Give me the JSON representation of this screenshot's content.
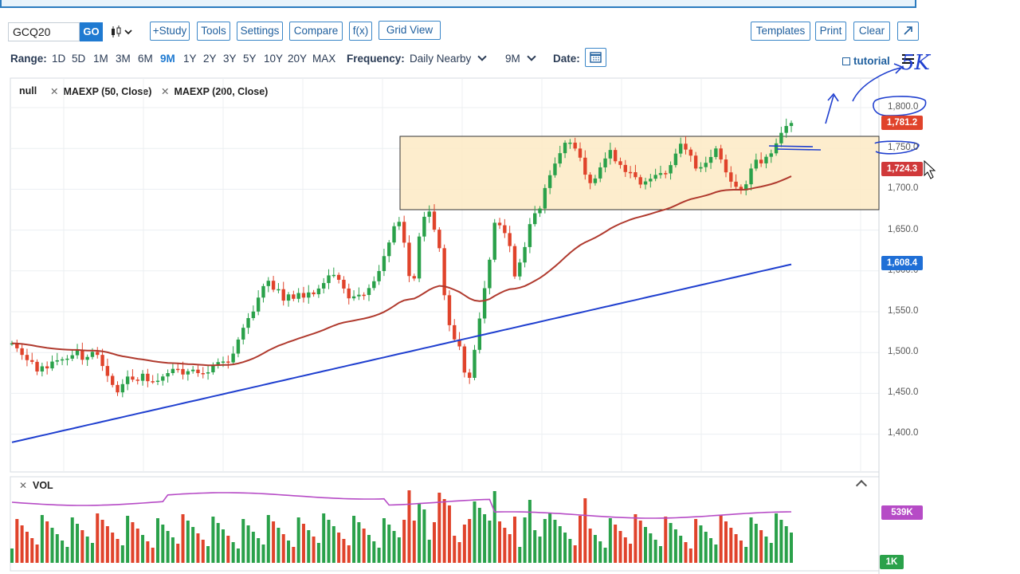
{
  "toolbar": {
    "symbol": "GCQ20",
    "go_label": "GO",
    "buttons": [
      "+Study",
      "Tools",
      "Settings",
      "Compare",
      "f(x)",
      "Grid View"
    ],
    "right_buttons": [
      "Templates",
      "Print",
      "Clear"
    ]
  },
  "range_bar": {
    "range_label": "Range:",
    "ranges": [
      "1D",
      "5D",
      "1M",
      "3M",
      "6M",
      "9M",
      "1Y",
      "2Y",
      "3Y",
      "5Y",
      "10Y",
      "20Y",
      "MAX"
    ],
    "active_range": "9M",
    "frequency_label": "Frequency:",
    "frequency_value": "Daily Nearby",
    "period_value": "9M",
    "date_label": "Date:",
    "tutorial_label": "tutorial"
  },
  "legend": {
    "items": [
      "null",
      "MAEXP (50, Close)",
      "MAEXP (200, Close)"
    ]
  },
  "price_axis": {
    "labels": [
      "1,800.0",
      "1,750.0",
      "1,700.0",
      "1,650.0",
      "1,600.0",
      "1,550.0",
      "1,500.0",
      "1,450.0",
      "1,400.0"
    ],
    "tags": [
      {
        "text": "1,781.2",
        "value": 1781.2,
        "color": "#e0432b"
      },
      {
        "text": "1,724.3",
        "value": 1724.3,
        "color": "#d0393a"
      },
      {
        "text": "1,608.4",
        "value": 1608.4,
        "color": "#1f6fd6"
      }
    ]
  },
  "volume_panel": {
    "title": "VOL",
    "close_glyph": "✕",
    "tags": [
      {
        "text": "539K",
        "color": "#b64bc6"
      },
      {
        "text": "1K",
        "color": "#2aa14a"
      }
    ]
  },
  "annotations": {
    "handwritten_text": "5K"
  },
  "colors": {
    "up": "#2aa14a",
    "down": "#e0432b",
    "ma50": "#b03a2e",
    "ma200": "#1f3fcf",
    "vol_avg": "#b64bc6",
    "range_box_fill": "#fdebc8",
    "accent": "#1f7ad1"
  },
  "chart_data": {
    "type": "candlestick",
    "ylim": [
      1375,
      1825
    ],
    "candles": [
      1511.3,
      1505.2,
      1497.1,
      1490.7,
      1488.6,
      1476.8,
      1483.1,
      1480.6,
      1488.9,
      1490.5,
      1491.7,
      1492.5,
      1496.7,
      1503.1,
      1491.1,
      1494.6,
      1500.8,
      1497.1,
      1483.5,
      1471.4,
      1460.3,
      1451.2,
      1461.3,
      1470.6,
      1466.8,
      1465.4,
      1474.0,
      1464.9,
      1464.6,
      1465.5,
      1470.7,
      1474.8,
      1480.0,
      1479.8,
      1473.1,
      1477.1,
      1479.0,
      1474.8,
      1474.3,
      1475.8,
      1484.9,
      1488.3,
      1489.0,
      1487.9,
      1498.7,
      1515.9,
      1530.3,
      1542.2,
      1550.2,
      1567.3,
      1581.4,
      1587.9,
      1577.0,
      1577.6,
      1563.6,
      1571.2,
      1565.8,
      1572.9,
      1567.3,
      1573.6,
      1571.4,
      1578.4,
      1585.1,
      1594.5,
      1595.1,
      1589.1,
      1578.4,
      1566.4,
      1568.8,
      1570.8,
      1570.5,
      1579.0,
      1587.3,
      1599.8,
      1618.1,
      1634.8,
      1654.7,
      1660.1,
      1634.6,
      1593.7,
      1590.7,
      1642.1,
      1666.3,
      1672.7,
      1650.5,
      1627.8,
      1570.2,
      1533.5,
      1516.1,
      1507.5,
      1475.5,
      1469.0,
      1503.3,
      1541.7,
      1578.8,
      1613.7,
      1659.0,
      1655.9,
      1646.3,
      1630.4,
      1593.2,
      1610.3,
      1629.2,
      1657.3,
      1670.6,
      1676.4,
      1701.5,
      1717.2,
      1731.5,
      1744.2,
      1757.0,
      1757.1,
      1749.9,
      1738.7,
      1717.9,
      1707.5,
      1713.2,
      1726.8,
      1737.7,
      1748.1,
      1734.3,
      1729.8,
      1721.1,
      1720.9,
      1714.8,
      1705.8,
      1709.6,
      1712.9,
      1717.6,
      1719.8,
      1719.4,
      1729.6,
      1743.7,
      1755.8,
      1748.6,
      1741.2,
      1725.4,
      1727.1,
      1732.4,
      1739.5,
      1750.0,
      1736.5,
      1720.7,
      1709.3,
      1703.0,
      1698.6,
      1706.1,
      1725.4,
      1736.2,
      1731.7,
      1739.8,
      1744.0,
      1756.2,
      1769.1,
      1777.5,
      1781.2
    ]
  }
}
